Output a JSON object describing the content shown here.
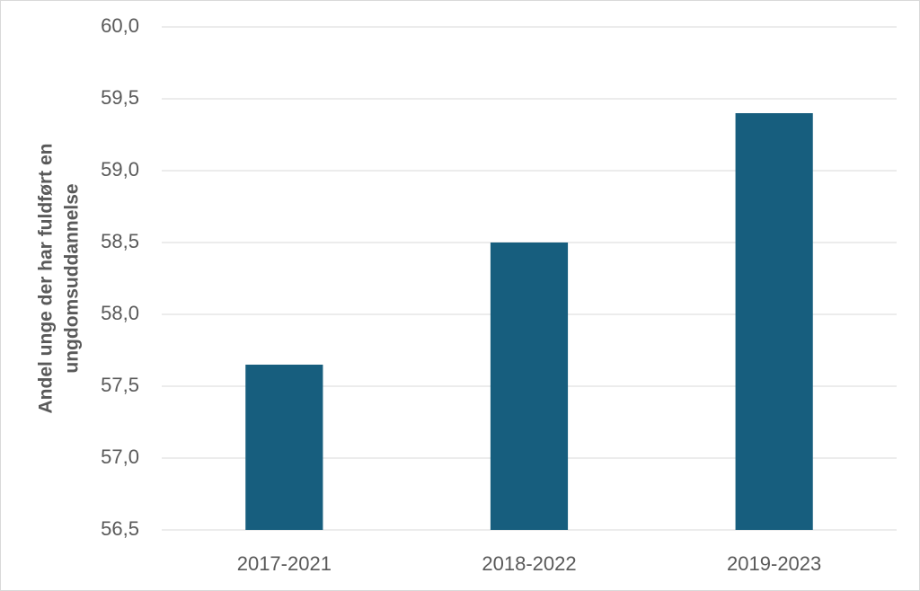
{
  "chart_data": {
    "type": "bar",
    "y_label": [
      "Andel unge der har fuldført en",
      "ungdomsuddannelse"
    ],
    "categories": [
      "2017-2021",
      "2018-2022",
      "2019-2023"
    ],
    "values": [
      57.65,
      58.5,
      59.4
    ],
    "color": "#175e7e",
    "ylim": [
      56.5,
      60
    ],
    "yticks": [
      {
        "value": 56.5,
        "label": "56,5"
      },
      {
        "value": 57,
        "label": "57,0"
      },
      {
        "value": 57.5,
        "label": "57,5"
      },
      {
        "value": 58,
        "label": "58,0"
      },
      {
        "value": 58.5,
        "label": "58,5"
      },
      {
        "value": 59,
        "label": "59,0"
      },
      {
        "value": 59.5,
        "label": "59,5"
      },
      {
        "value": 60,
        "label": "60,0"
      }
    ],
    "grid": true
  }
}
